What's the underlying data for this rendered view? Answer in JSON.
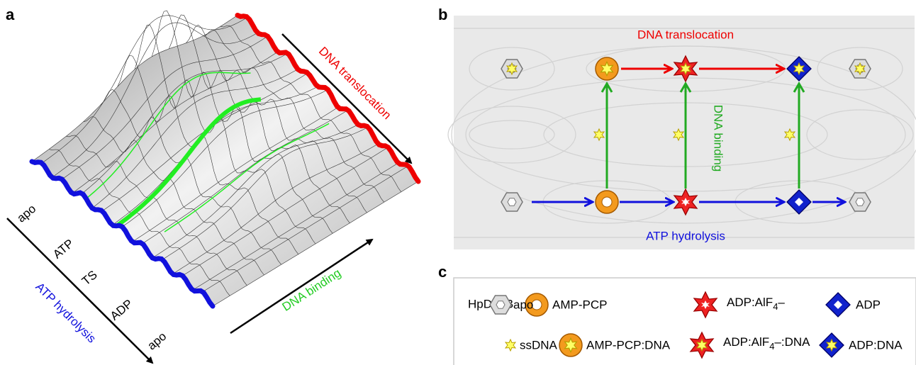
{
  "panel_a": {
    "label": "a",
    "translocation_label": "DNA translocation",
    "states": [
      "apo",
      "ATP",
      "TS",
      "ADP",
      "apo"
    ],
    "hydrolysis_label": "ATP hydrolysis",
    "binding_label": "DNA binding"
  },
  "panel_b": {
    "label": "b",
    "top_label": "DNA translocation",
    "side_label": "DNA binding",
    "bottom_label": "ATP hydrolysis"
  },
  "panel_c": {
    "label": "c",
    "protein": "HpDnaB",
    "legend": [
      "apo",
      "AMP-PCP",
      [
        "ADP:AlF",
        "4",
        "–"
      ],
      "ADP",
      "ssDNA",
      "AMP-PCP:DNA",
      [
        "ADP:AlF",
        "4",
        "–:DNA"
      ],
      "ADP:DNA"
    ]
  }
}
